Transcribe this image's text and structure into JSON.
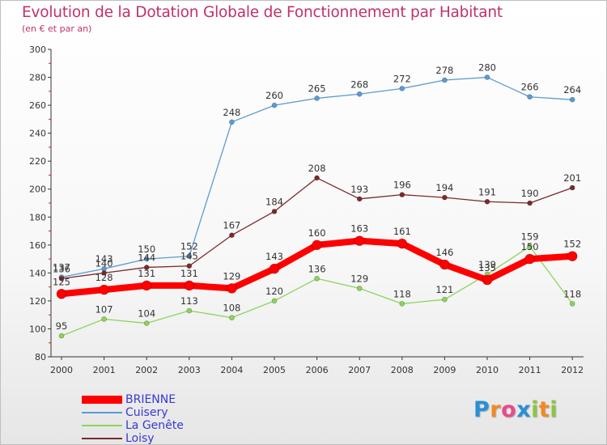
{
  "chart_data": {
    "type": "line",
    "title": "Evolution de la Dotation Globale de Fonctionnement par Habitant",
    "subtitle": "(en € et par an)",
    "xlabel": "",
    "ylabel": "",
    "ylim": [
      80,
      300
    ],
    "yticks": [
      80,
      100,
      120,
      140,
      160,
      180,
      200,
      220,
      240,
      260,
      280,
      300
    ],
    "categories": [
      "2000",
      "2001",
      "2002",
      "2003",
      "2004",
      "2005",
      "2006",
      "2007",
      "2008",
      "2009",
      "2010",
      "2011",
      "2012"
    ],
    "grid": false,
    "legend_position": "bottom-left",
    "series": [
      {
        "name": "BRIENNE",
        "color": "#ff0000",
        "values": [
          125,
          128,
          131,
          131,
          129,
          143,
          160,
          163,
          161,
          146,
          135,
          150,
          152
        ]
      },
      {
        "name": "Cuisery",
        "color": "#5b9bd5",
        "values": [
          137,
          143,
          150,
          152,
          248,
          260,
          265,
          268,
          272,
          278,
          280,
          266,
          264
        ]
      },
      {
        "name": "La Genête",
        "color": "#8ed35a",
        "values": [
          95,
          107,
          104,
          113,
          108,
          120,
          136,
          129,
          118,
          121,
          139,
          159,
          118
        ]
      },
      {
        "name": "Loisy",
        "color": "#7b2a2a",
        "values": [
          136,
          140,
          144,
          145,
          167,
          184,
          208,
          193,
          196,
          194,
          191,
          190,
          201
        ]
      }
    ]
  },
  "logo": {
    "letters": [
      "P",
      "r",
      "o",
      "x",
      "i",
      "t",
      "i"
    ],
    "colors": [
      "#2a8fd6",
      "#f08a24",
      "#e94b8a",
      "#2a8fd6",
      "#8cc63f",
      "#f08a24",
      "#8cc63f"
    ]
  }
}
